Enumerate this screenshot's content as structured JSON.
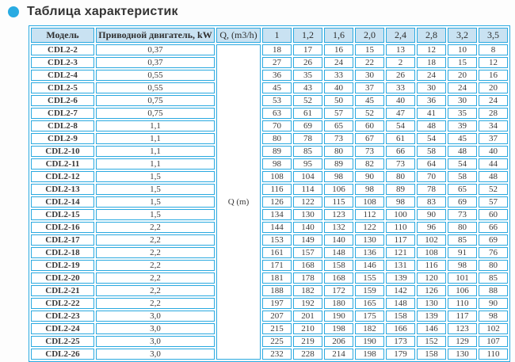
{
  "page": {
    "title": "Таблица характеристик"
  },
  "icons": {
    "section_bullet": "circle"
  },
  "colors": {
    "accent": "#29abe2",
    "table_border": "#2aa9e0",
    "header_background": "#c9e2f2",
    "text": "#333333"
  },
  "table": {
    "headers": [
      "Модель",
      "Приводной двигатель, kW",
      "Q, (m3/h)",
      "1",
      "1,2",
      "1,6",
      "2,0",
      "2,4",
      "2,8",
      "3,2",
      "3,5"
    ],
    "merged_cell_label": "Q (m)",
    "rows": [
      {
        "model": "CDL2-2",
        "power": "0,37",
        "values": [
          18,
          17,
          16,
          15,
          13,
          12,
          10,
          8
        ]
      },
      {
        "model": "CDL2-3",
        "power": "0,37",
        "values": [
          27,
          26,
          24,
          22,
          2,
          18,
          15,
          12
        ]
      },
      {
        "model": "CDL2-4",
        "power": "0,55",
        "values": [
          36,
          35,
          33,
          30,
          26,
          24,
          20,
          16
        ]
      },
      {
        "model": "CDL2-5",
        "power": "0,55",
        "values": [
          45,
          43,
          40,
          37,
          33,
          30,
          24,
          20
        ]
      },
      {
        "model": "CDL2-6",
        "power": "0,75",
        "values": [
          53,
          52,
          50,
          45,
          40,
          36,
          30,
          24
        ]
      },
      {
        "model": "CDL2-7",
        "power": "0,75",
        "values": [
          63,
          61,
          57,
          52,
          47,
          41,
          35,
          28
        ]
      },
      {
        "model": "CDL2-8",
        "power": "1,1",
        "values": [
          70,
          69,
          65,
          60,
          54,
          48,
          39,
          34
        ]
      },
      {
        "model": "CDL2-9",
        "power": "1,1",
        "values": [
          80,
          78,
          73,
          67,
          61,
          54,
          45,
          37
        ]
      },
      {
        "model": "CDL2-10",
        "power": "1,1",
        "values": [
          89,
          85,
          80,
          73,
          66,
          58,
          48,
          40
        ]
      },
      {
        "model": "CDL2-11",
        "power": "1,1",
        "values": [
          98,
          95,
          89,
          82,
          73,
          64,
          54,
          44
        ]
      },
      {
        "model": "CDL2-12",
        "power": "1,5",
        "values": [
          108,
          104,
          98,
          90,
          80,
          70,
          58,
          48
        ]
      },
      {
        "model": "CDL2-13",
        "power": "1,5",
        "values": [
          116,
          114,
          106,
          98,
          89,
          78,
          65,
          52
        ]
      },
      {
        "model": "CDL2-14",
        "power": "1,5",
        "values": [
          126,
          122,
          115,
          108,
          98,
          83,
          69,
          57
        ]
      },
      {
        "model": "CDL2-15",
        "power": "1,5",
        "values": [
          134,
          130,
          123,
          112,
          100,
          90,
          73,
          60
        ]
      },
      {
        "model": "CDL2-16",
        "power": "2,2",
        "values": [
          144,
          140,
          132,
          122,
          110,
          96,
          80,
          66
        ]
      },
      {
        "model": "CDL2-17",
        "power": "2,2",
        "values": [
          153,
          149,
          140,
          130,
          117,
          102,
          85,
          69
        ]
      },
      {
        "model": "CDL2-18",
        "power": "2,2",
        "values": [
          161,
          157,
          148,
          136,
          121,
          108,
          91,
          76
        ]
      },
      {
        "model": "CDL2-19",
        "power": "2,2",
        "values": [
          171,
          168,
          158,
          146,
          131,
          116,
          98,
          80
        ]
      },
      {
        "model": "CDL2-20",
        "power": "2,2",
        "values": [
          181,
          178,
          168,
          155,
          139,
          120,
          101,
          85
        ]
      },
      {
        "model": "CDL2-21",
        "power": "2,2",
        "values": [
          188,
          182,
          172,
          159,
          142,
          126,
          106,
          88
        ]
      },
      {
        "model": "CDL2-22",
        "power": "2,2",
        "values": [
          197,
          192,
          180,
          165,
          148,
          130,
          110,
          90
        ]
      },
      {
        "model": "CDL2-23",
        "power": "3,0",
        "values": [
          207,
          201,
          190,
          175,
          158,
          139,
          117,
          98
        ]
      },
      {
        "model": "CDL2-24",
        "power": "3,0",
        "values": [
          215,
          210,
          198,
          182,
          166,
          146,
          123,
          102
        ]
      },
      {
        "model": "CDL2-25",
        "power": "3,0",
        "values": [
          225,
          219,
          206,
          190,
          173,
          152,
          129,
          107
        ]
      },
      {
        "model": "CDL2-26",
        "power": "3,0",
        "values": [
          232,
          228,
          214,
          198,
          179,
          158,
          130,
          110
        ]
      }
    ]
  }
}
